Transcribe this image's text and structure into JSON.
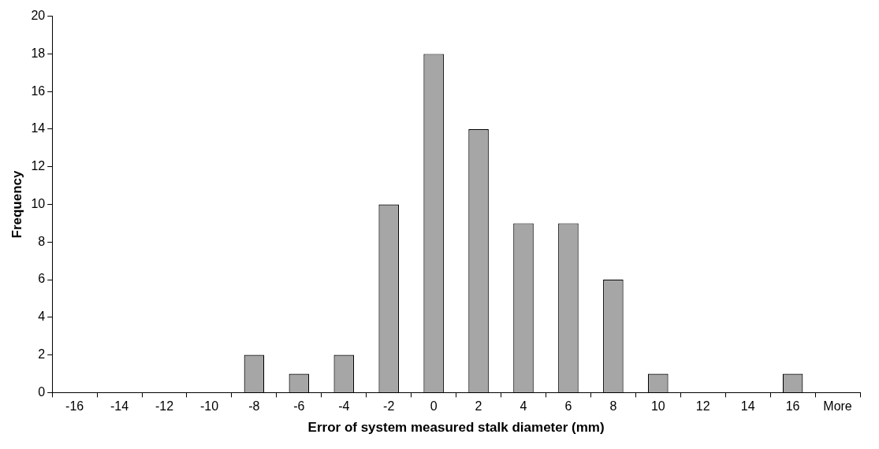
{
  "chart_data": {
    "type": "bar",
    "xlabel": "Error of system measured stalk diameter (mm)",
    "ylabel": "Frequency",
    "categories": [
      "-16",
      "-14",
      "-12",
      "-10",
      "-8",
      "-6",
      "-4",
      "-2",
      "0",
      "2",
      "4",
      "6",
      "8",
      "10",
      "12",
      "14",
      "16",
      "More"
    ],
    "values": [
      0,
      0,
      0,
      0,
      2,
      1,
      2,
      10,
      18,
      14,
      9,
      9,
      6,
      1,
      0,
      0,
      1,
      0
    ],
    "color": "#a6a6a6",
    "ylim": [
      0,
      20
    ],
    "yticks": [
      0,
      2,
      4,
      6,
      8,
      10,
      12,
      14,
      16,
      18,
      20
    ],
    "grid": false,
    "legend": false
  }
}
